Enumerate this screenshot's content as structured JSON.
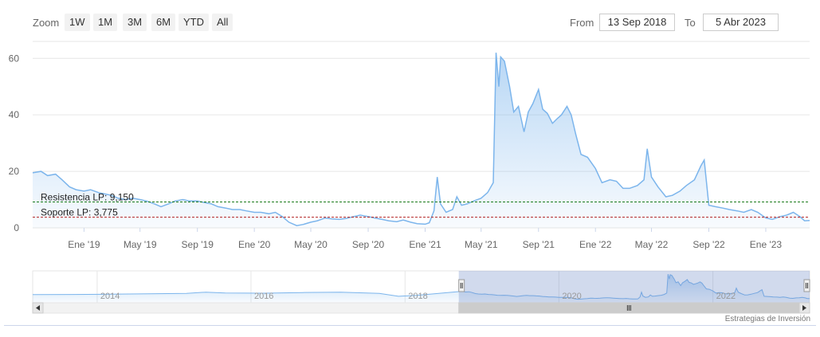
{
  "toolbar": {
    "zoom_label": "Zoom",
    "zoom_buttons": [
      "1W",
      "1M",
      "3M",
      "6M",
      "YTD",
      "All"
    ],
    "from_label": "From",
    "from_value": "13 Sep 2018",
    "to_label": "To",
    "to_value": "5 Abr 2023"
  },
  "credits": "Estrategias de Inversión",
  "colors": {
    "series_line": "#7cb5ec",
    "resistance_line": "#1a7a1a",
    "support_line": "#b22222",
    "navigator_mask": "#6685c2",
    "grid": "#e6e6e6"
  },
  "chart_data": {
    "type": "area",
    "y_ticks": [
      0,
      20,
      40,
      60
    ],
    "ylim": [
      0,
      66
    ],
    "x_ticks": [
      "Ene '19",
      "May '19",
      "Sep '19",
      "Ene '20",
      "May '20",
      "Sep '20",
      "Ene '21",
      "May '21",
      "Sep '21",
      "Ene '22",
      "May '22",
      "Sep '22",
      "Ene '23"
    ],
    "grid": true,
    "xlim": [
      "2018-09-13",
      "2023-04-05"
    ],
    "series": [
      {
        "points": [
          [
            "2018-09-13",
            19.5
          ],
          [
            "2018-10-01",
            20.0
          ],
          [
            "2018-10-15",
            18.5
          ],
          [
            "2018-11-01",
            19.0
          ],
          [
            "2018-11-15",
            17.0
          ],
          [
            "2018-12-01",
            14.5
          ],
          [
            "2018-12-15",
            13.5
          ],
          [
            "2019-01-01",
            13.0
          ],
          [
            "2019-01-15",
            13.5
          ],
          [
            "2019-02-01",
            12.5
          ],
          [
            "2019-02-15",
            12.0
          ],
          [
            "2019-03-01",
            11.5
          ],
          [
            "2019-03-15",
            10.5
          ],
          [
            "2019-04-01",
            10.0
          ],
          [
            "2019-04-15",
            10.5
          ],
          [
            "2019-05-01",
            10.0
          ],
          [
            "2019-05-15",
            9.5
          ],
          [
            "2019-06-01",
            8.5
          ],
          [
            "2019-06-15",
            7.5
          ],
          [
            "2019-07-01",
            8.5
          ],
          [
            "2019-07-15",
            9.5
          ],
          [
            "2019-08-01",
            10.0
          ],
          [
            "2019-08-15",
            9.5
          ],
          [
            "2019-09-01",
            9.5
          ],
          [
            "2019-09-15",
            9.0
          ],
          [
            "2019-10-01",
            8.5
          ],
          [
            "2019-10-15",
            7.5
          ],
          [
            "2019-11-01",
            7.0
          ],
          [
            "2019-11-15",
            6.5
          ],
          [
            "2019-12-01",
            6.5
          ],
          [
            "2019-12-15",
            6.0
          ],
          [
            "2020-01-01",
            5.5
          ],
          [
            "2020-01-15",
            5.5
          ],
          [
            "2020-02-01",
            5.0
          ],
          [
            "2020-02-15",
            5.5
          ],
          [
            "2020-03-01",
            4.0
          ],
          [
            "2020-03-15",
            2.0
          ],
          [
            "2020-04-01",
            0.8
          ],
          [
            "2020-04-15",
            1.2
          ],
          [
            "2020-05-01",
            2.0
          ],
          [
            "2020-05-15",
            2.5
          ],
          [
            "2020-06-01",
            3.5
          ],
          [
            "2020-06-15",
            3.2
          ],
          [
            "2020-07-01",
            3.0
          ],
          [
            "2020-07-15",
            3.3
          ],
          [
            "2020-08-01",
            4.0
          ],
          [
            "2020-08-15",
            4.5
          ],
          [
            "2020-09-01",
            4.0
          ],
          [
            "2020-09-15",
            3.5
          ],
          [
            "2020-10-01",
            3.0
          ],
          [
            "2020-10-15",
            2.5
          ],
          [
            "2020-11-01",
            2.2
          ],
          [
            "2020-11-15",
            2.8
          ],
          [
            "2020-12-01",
            2.0
          ],
          [
            "2020-12-15",
            1.5
          ],
          [
            "2021-01-01",
            1.3
          ],
          [
            "2021-01-10",
            1.8
          ],
          [
            "2021-01-20",
            6.0
          ],
          [
            "2021-01-27",
            18.0
          ],
          [
            "2021-02-03",
            8.5
          ],
          [
            "2021-02-15",
            5.5
          ],
          [
            "2021-03-01",
            6.5
          ],
          [
            "2021-03-10",
            11.0
          ],
          [
            "2021-03-20",
            8.0
          ],
          [
            "2021-04-01",
            8.5
          ],
          [
            "2021-04-15",
            9.5
          ],
          [
            "2021-05-01",
            10.5
          ],
          [
            "2021-05-15",
            12.5
          ],
          [
            "2021-05-27",
            16.0
          ],
          [
            "2021-06-02",
            62.0
          ],
          [
            "2021-06-08",
            50.0
          ],
          [
            "2021-06-12",
            60.5
          ],
          [
            "2021-06-20",
            59.0
          ],
          [
            "2021-07-01",
            50.0
          ],
          [
            "2021-07-10",
            41.0
          ],
          [
            "2021-07-20",
            43.0
          ],
          [
            "2021-08-01",
            34.0
          ],
          [
            "2021-08-10",
            41.0
          ],
          [
            "2021-08-20",
            44.0
          ],
          [
            "2021-09-01",
            49.0
          ],
          [
            "2021-09-10",
            42.0
          ],
          [
            "2021-09-20",
            40.5
          ],
          [
            "2021-10-01",
            37.0
          ],
          [
            "2021-10-10",
            38.5
          ],
          [
            "2021-10-20",
            40.0
          ],
          [
            "2021-11-01",
            43.0
          ],
          [
            "2021-11-10",
            40.0
          ],
          [
            "2021-11-20",
            33.0
          ],
          [
            "2021-12-01",
            26.0
          ],
          [
            "2021-12-15",
            25.0
          ],
          [
            "2022-01-01",
            21.0
          ],
          [
            "2022-01-15",
            16.0
          ],
          [
            "2022-02-01",
            17.0
          ],
          [
            "2022-02-15",
            16.5
          ],
          [
            "2022-03-01",
            14.0
          ],
          [
            "2022-03-15",
            14.0
          ],
          [
            "2022-04-01",
            15.0
          ],
          [
            "2022-04-15",
            17.0
          ],
          [
            "2022-04-22",
            28.0
          ],
          [
            "2022-05-01",
            18.0
          ],
          [
            "2022-05-15",
            14.5
          ],
          [
            "2022-06-01",
            11.0
          ],
          [
            "2022-06-15",
            11.5
          ],
          [
            "2022-07-01",
            13.0
          ],
          [
            "2022-07-15",
            15.0
          ],
          [
            "2022-08-01",
            17.0
          ],
          [
            "2022-08-15",
            22.0
          ],
          [
            "2022-08-22",
            24.0
          ],
          [
            "2022-09-01",
            8.0
          ],
          [
            "2022-09-15",
            7.5
          ],
          [
            "2022-10-01",
            7.0
          ],
          [
            "2022-10-15",
            6.5
          ],
          [
            "2022-11-01",
            6.0
          ],
          [
            "2022-11-15",
            5.5
          ],
          [
            "2022-12-01",
            6.5
          ],
          [
            "2022-12-15",
            5.5
          ],
          [
            "2023-01-01",
            3.5
          ],
          [
            "2023-01-15",
            3.0
          ],
          [
            "2023-02-01",
            4.0
          ],
          [
            "2023-02-15",
            4.5
          ],
          [
            "2023-03-01",
            5.5
          ],
          [
            "2023-03-15",
            4.0
          ],
          [
            "2023-03-25",
            2.5
          ],
          [
            "2023-04-05",
            2.6
          ]
        ]
      }
    ],
    "annotations": [
      {
        "label": "Resistencia LP: 9,150",
        "value": 9.15,
        "style": "dashed",
        "color": "#1a7a1a"
      },
      {
        "label": "Soporte LP: 3,775",
        "value": 3.775,
        "style": "dashed",
        "color": "#b22222"
      }
    ],
    "navigator": {
      "x_ticks": [
        "2014",
        "2016",
        "2018",
        "2020",
        "2022"
      ],
      "xlim": [
        "2013-03-01",
        "2023-04-05"
      ],
      "selected_range": [
        "2018-09-13",
        "2023-04-05"
      ],
      "series": [
        [
          "2013-03-01",
          12.0
        ],
        [
          "2013-09-01",
          12.5
        ],
        [
          "2014-03-01",
          13.0
        ],
        [
          "2014-09-01",
          14.0
        ],
        [
          "2015-03-01",
          15.0
        ],
        [
          "2015-06-01",
          18.0
        ],
        [
          "2015-09-01",
          16.0
        ],
        [
          "2016-03-01",
          15.5
        ],
        [
          "2016-09-01",
          17.0
        ],
        [
          "2017-03-01",
          18.0
        ],
        [
          "2017-09-01",
          15.0
        ],
        [
          "2017-12-01",
          8.0
        ],
        [
          "2018-03-01",
          10.5
        ],
        [
          "2018-09-13",
          19.5
        ]
      ]
    }
  }
}
